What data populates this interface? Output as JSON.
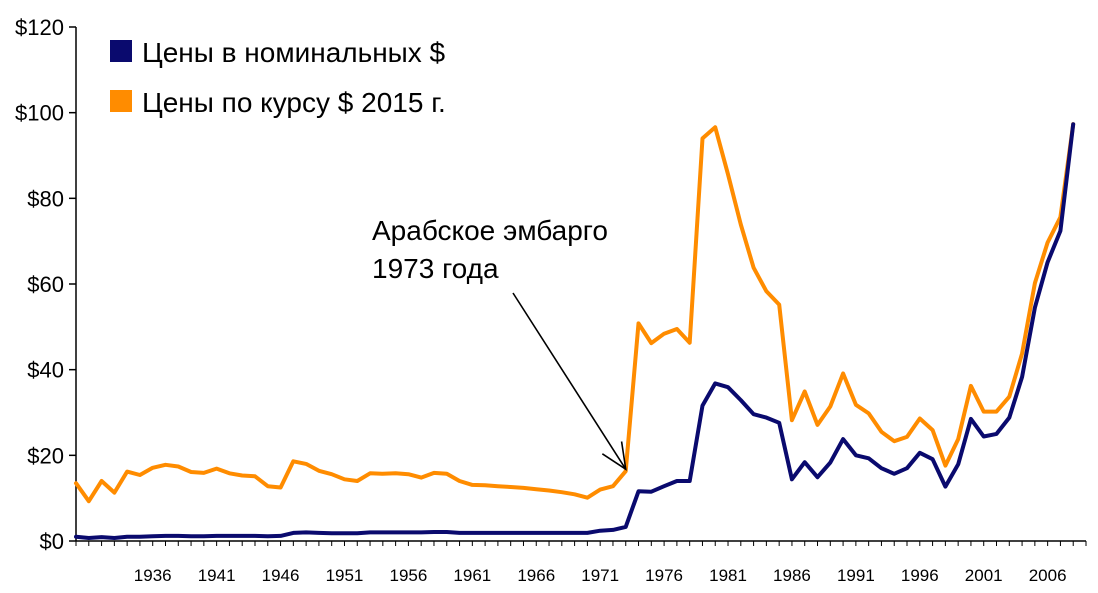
{
  "chart_data": {
    "type": "line",
    "x": [
      1930,
      1931,
      1932,
      1933,
      1934,
      1935,
      1936,
      1937,
      1938,
      1939,
      1940,
      1941,
      1942,
      1943,
      1944,
      1945,
      1946,
      1947,
      1948,
      1949,
      1950,
      1951,
      1952,
      1953,
      1954,
      1955,
      1956,
      1957,
      1958,
      1959,
      1960,
      1961,
      1962,
      1963,
      1964,
      1965,
      1966,
      1967,
      1968,
      1969,
      1970,
      1971,
      1972,
      1973,
      1974,
      1975,
      1976,
      1977,
      1978,
      1979,
      1980,
      1981,
      1982,
      1983,
      1984,
      1985,
      1986,
      1987,
      1988,
      1989,
      1990,
      1991,
      1992,
      1993,
      1994,
      1995,
      1996,
      1997,
      1998,
      1999,
      2000,
      2001,
      2002,
      2003,
      2004,
      2005,
      2006,
      2007,
      2008
    ],
    "series": [
      {
        "name": "Цены в номинальных $",
        "color": "#0a0a6e",
        "values": [
          1.0,
          0.7,
          0.9,
          0.7,
          1.0,
          1.0,
          1.1,
          1.2,
          1.2,
          1.1,
          1.1,
          1.2,
          1.2,
          1.2,
          1.2,
          1.1,
          1.2,
          1.9,
          2.0,
          1.9,
          1.8,
          1.8,
          1.8,
          2.0,
          2.0,
          2.0,
          2.0,
          2.0,
          2.1,
          2.1,
          1.9,
          1.9,
          1.9,
          1.9,
          1.9,
          1.9,
          1.9,
          1.9,
          1.9,
          1.9,
          1.9,
          2.4,
          2.6,
          3.3,
          11.6,
          11.5,
          12.8,
          14.0,
          14.0,
          31.6,
          36.8,
          35.9,
          32.9,
          29.6,
          28.8,
          27.6,
          14.4,
          18.4,
          14.9,
          18.3,
          23.8,
          20.0,
          19.3,
          17.0,
          15.7,
          17.0,
          20.6,
          19.1,
          12.7,
          17.9,
          28.5,
          24.4,
          25.0,
          28.8,
          38.3,
          54.5,
          65.1,
          72.4,
          97.3
        ]
      },
      {
        "name": "Цены по курсу $ 2015 г.",
        "color": "#ff8c00",
        "values": [
          13.5,
          9.3,
          14.0,
          11.3,
          16.2,
          15.4,
          17.1,
          17.8,
          17.4,
          16.1,
          15.9,
          16.9,
          15.8,
          15.3,
          15.1,
          12.8,
          12.5,
          18.6,
          18.0,
          16.4,
          15.6,
          14.4,
          14.0,
          15.8,
          15.7,
          15.8,
          15.6,
          14.8,
          15.9,
          15.7,
          14.0,
          13.1,
          13.0,
          12.8,
          12.6,
          12.4,
          12.1,
          11.8,
          11.4,
          10.9,
          10.1,
          12.0,
          12.8,
          16.3,
          50.8,
          46.2,
          48.4,
          49.5,
          46.3,
          94.0,
          96.6,
          85.6,
          73.9,
          63.8,
          58.3,
          55.2,
          28.2,
          34.9,
          27.1,
          31.4,
          39.1,
          31.8,
          29.8,
          25.5,
          23.3,
          24.3,
          28.6,
          25.9,
          17.6,
          23.8,
          36.2,
          30.2,
          30.2,
          33.7,
          43.8,
          60.2,
          69.7,
          75.6,
          97.3
        ]
      }
    ],
    "ylim": [
      0,
      120
    ],
    "xlim": [
      1930,
      2009
    ],
    "yticks": [
      0,
      20,
      40,
      60,
      80,
      100,
      120
    ],
    "ytick_labels": [
      "$0",
      "$20",
      "$40",
      "$60",
      "$80",
      "$100",
      "$120"
    ],
    "xtick_labels": [
      "1936",
      "1941",
      "1946",
      "1951",
      "1956",
      "1961",
      "1966",
      "1971",
      "1976",
      "1981",
      "1986",
      "1991",
      "1996",
      "2001",
      "2006"
    ],
    "title": "",
    "xlabel": "",
    "ylabel": "",
    "grid": false,
    "legend_position": "top-left",
    "annotation": {
      "lines": [
        "Арабское эмбарго",
        "1973 года"
      ],
      "target_x": 1973,
      "target_y": 16.3
    }
  }
}
